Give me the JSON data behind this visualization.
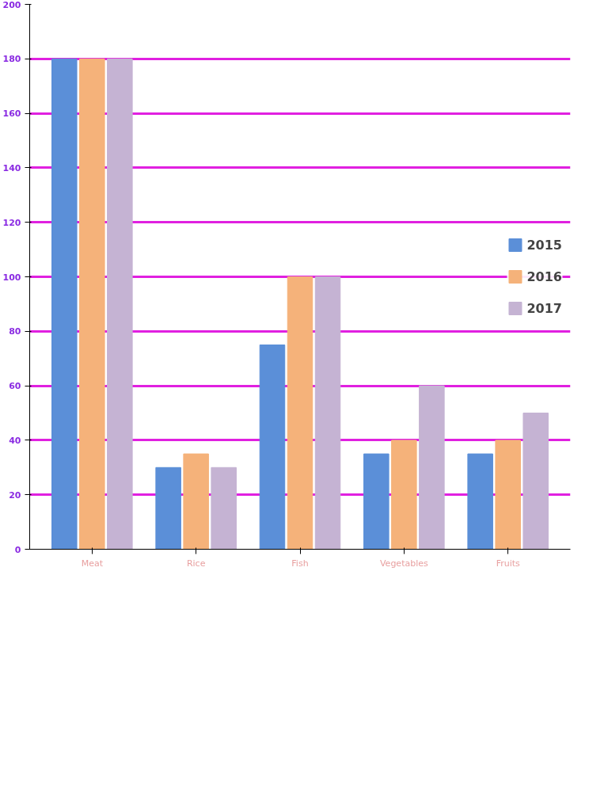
{
  "chart_data": {
    "type": "bar",
    "categories": [
      "Meat",
      "Rice",
      "Fish",
      "Vegetables",
      "Fruits"
    ],
    "series": [
      {
        "name": "2015",
        "color": "#5b8fd8",
        "values": [
          180,
          30,
          75,
          35,
          35
        ]
      },
      {
        "name": "2016",
        "color": "#f5b27a",
        "values": [
          180,
          35,
          100,
          40,
          40
        ]
      },
      {
        "name": "2017",
        "color": "#c5b3d3",
        "values": [
          180,
          30,
          100,
          60,
          50
        ]
      }
    ],
    "ylim": [
      0,
      200
    ],
    "yticks": [
      0,
      20,
      40,
      60,
      80,
      100,
      120,
      140,
      160,
      180,
      200
    ],
    "grid": "y",
    "legend": "right"
  }
}
